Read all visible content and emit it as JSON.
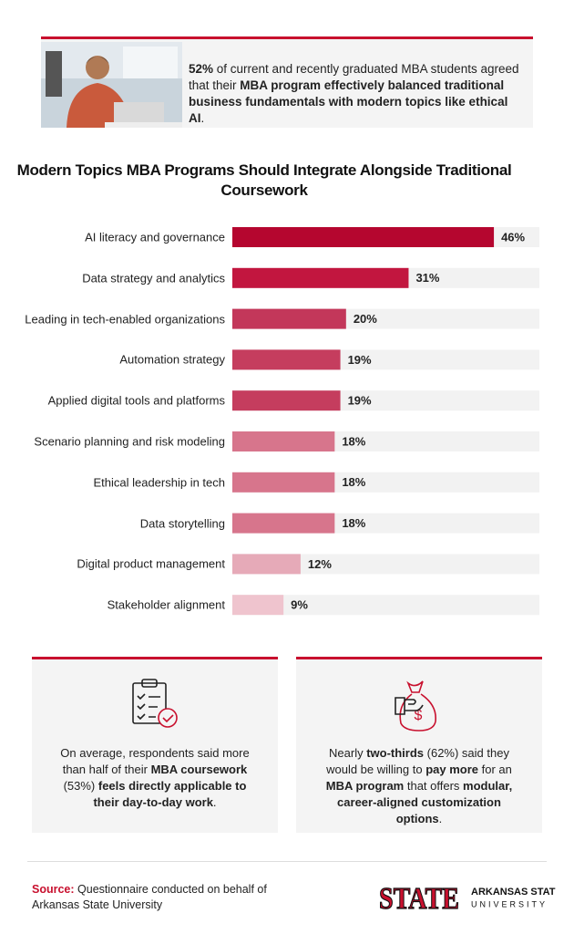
{
  "intro": {
    "segments": [
      {
        "text": "52%",
        "bold": true
      },
      {
        "text": " of current and recently graduated MBA students agreed that their ",
        "bold": false
      },
      {
        "text": "MBA program effectively balanced traditional business fundamentals with modern topics like ethical AI",
        "bold": true
      },
      {
        "text": ".",
        "bold": false
      }
    ]
  },
  "chart_data": {
    "type": "bar",
    "orientation": "horizontal",
    "title": "Modern Topics MBA Programs Should Integrate Alongside Traditional Coursework",
    "categories": [
      "AI literacy and governance",
      "Data strategy and analytics",
      "Leading in tech-enabled organizations",
      "Automation strategy",
      "Applied digital tools and platforms",
      "Scenario planning and risk modeling",
      "Ethical leadership in tech",
      "Data storytelling",
      "Digital product management",
      "Stakeholder alignment"
    ],
    "values": [
      46,
      31,
      20,
      19,
      19,
      18,
      18,
      18,
      12,
      9
    ],
    "value_labels": [
      "46%",
      "31%",
      "20%",
      "19%",
      "19%",
      "18%",
      "18%",
      "18%",
      "12%",
      "9%"
    ],
    "colors": [
      "#b5062f",
      "#c2163f",
      "#c3375a",
      "#c53d5e",
      "#c53d5e",
      "#d7758c",
      "#d7758c",
      "#d7758c",
      "#e6aab8",
      "#efc4ce"
    ],
    "track_color": "#f2f2f2",
    "xlim": [
      0,
      54
    ]
  },
  "cards": [
    {
      "segments": [
        {
          "text": "On average, respondents said more than half of their ",
          "bold": false
        },
        {
          "text": "MBA coursework",
          "bold": true
        },
        {
          "text": " (53%) ",
          "bold": false
        },
        {
          "text": "feels directly applicable to their day-to-day work",
          "bold": true
        },
        {
          "text": ".",
          "bold": false
        }
      ]
    },
    {
      "segments": [
        {
          "text": "Nearly ",
          "bold": false
        },
        {
          "text": "two-thirds",
          "bold": true
        },
        {
          "text": " (62%) said they would be willing to ",
          "bold": false
        },
        {
          "text": "pay more",
          "bold": true
        },
        {
          "text": " for an ",
          "bold": false
        },
        {
          "text": "MBA program",
          "bold": true
        },
        {
          "text": " that offers ",
          "bold": false
        },
        {
          "text": "modular, career-aligned customization options",
          "bold": true
        },
        {
          "text": ".",
          "bold": false
        }
      ]
    }
  ],
  "source": {
    "label": "Source:",
    "text": "Questionnaire conducted on behalf of Arkansas State University"
  },
  "logo": {
    "mark": "STATE",
    "name": "ARKANSAS STATE",
    "sub": "UNIVERSITY"
  }
}
